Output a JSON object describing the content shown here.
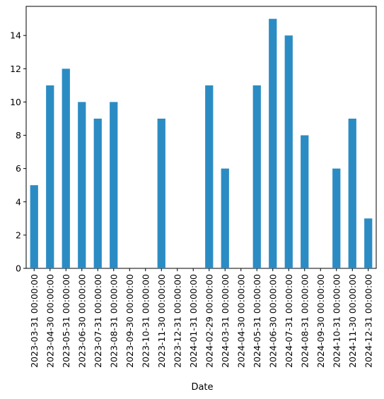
{
  "chart_data": {
    "type": "bar",
    "title": "",
    "xlabel": "Date",
    "ylabel": "",
    "categories": [
      "2023-03-31 00:00:00",
      "2023-04-30 00:00:00",
      "2023-05-31 00:00:00",
      "2023-06-30 00:00:00",
      "2023-07-31 00:00:00",
      "2023-08-31 00:00:00",
      "2023-09-30 00:00:00",
      "2023-10-31 00:00:00",
      "2023-11-30 00:00:00",
      "2023-12-31 00:00:00",
      "2024-01-31 00:00:00",
      "2024-02-29 00:00:00",
      "2024-03-31 00:00:00",
      "2024-04-30 00:00:00",
      "2024-05-31 00:00:00",
      "2024-06-30 00:00:00",
      "2024-07-31 00:00:00",
      "2024-08-31 00:00:00",
      "2024-09-30 00:00:00",
      "2024-10-31 00:00:00",
      "2024-11-30 00:00:00",
      "2024-12-31 00:00:00"
    ],
    "values": [
      5,
      11,
      12,
      10,
      9,
      10,
      0,
      0,
      9,
      0,
      0,
      11,
      6,
      0,
      11,
      15,
      14,
      8,
      0,
      6,
      9,
      3
    ],
    "ylim": [
      0,
      15.75
    ],
    "yticks": [
      0,
      2,
      4,
      6,
      8,
      10,
      12,
      14
    ],
    "bar_color": "#2b8cc4",
    "grid": false,
    "legend": "none"
  }
}
